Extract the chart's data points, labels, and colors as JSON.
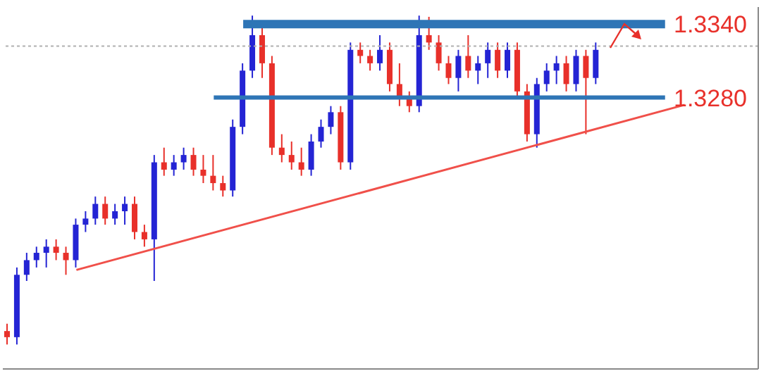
{
  "chart_data": {
    "type": "candlestick",
    "categories": [
      null,
      null,
      null,
      null,
      null,
      null,
      null,
      null,
      null,
      null,
      null,
      null,
      null,
      null,
      null,
      null,
      null,
      null,
      null,
      null,
      null,
      null,
      null,
      null,
      null,
      null,
      null,
      null,
      null,
      null,
      null,
      null,
      null,
      null,
      null,
      null,
      null,
      null,
      null,
      null,
      null,
      null,
      null,
      null,
      null,
      null,
      null,
      null,
      null,
      null,
      null,
      null,
      null,
      null,
      null,
      null,
      null,
      null,
      null,
      null,
      null,
      null,
      null,
      null,
      null,
      null,
      null,
      null,
      null,
      null,
      null,
      null,
      null,
      null,
      null,
      null,
      null
    ],
    "ohlc": [
      [
        1.3089,
        1.3095,
        1.3078,
        1.3084
      ],
      [
        1.3084,
        1.3141,
        1.3078,
        1.3135
      ],
      [
        1.3135,
        1.3153,
        1.313,
        1.3147
      ],
      [
        1.3147,
        1.3158,
        1.3141,
        1.3153
      ],
      [
        1.3153,
        1.3164,
        1.3141,
        1.3158
      ],
      [
        1.3158,
        1.3164,
        1.3147,
        1.3153
      ],
      [
        1.3153,
        1.3158,
        1.3135,
        1.3147
      ],
      [
        1.3147,
        1.3181,
        1.3141,
        1.3176
      ],
      [
        1.3176,
        1.3187,
        1.317,
        1.3181
      ],
      [
        1.3181,
        1.3199,
        1.3176,
        1.3193
      ],
      [
        1.3193,
        1.3199,
        1.3176,
        1.3181
      ],
      [
        1.3181,
        1.3193,
        1.3176,
        1.3187
      ],
      [
        1.3187,
        1.3199,
        1.3176,
        1.3193
      ],
      [
        1.3193,
        1.3199,
        1.3164,
        1.317
      ],
      [
        1.317,
        1.3176,
        1.3158,
        1.3164
      ],
      [
        1.3164,
        1.3233,
        1.313,
        1.3227
      ],
      [
        1.3227,
        1.3239,
        1.3216,
        1.3221
      ],
      [
        1.3221,
        1.3233,
        1.3216,
        1.3227
      ],
      [
        1.3227,
        1.3239,
        1.3221,
        1.3233
      ],
      [
        1.3233,
        1.3239,
        1.3216,
        1.3221
      ],
      [
        1.3221,
        1.3233,
        1.321,
        1.3216
      ],
      [
        1.3216,
        1.3233,
        1.3204,
        1.321
      ],
      [
        1.321,
        1.3216,
        1.3199,
        1.3204
      ],
      [
        1.3204,
        1.3262,
        1.3199,
        1.3256
      ],
      [
        1.3256,
        1.3308,
        1.325,
        1.3302
      ],
      [
        1.3302,
        1.3347,
        1.3296,
        1.3331
      ],
      [
        1.3331,
        1.3337,
        1.3296,
        1.3308
      ],
      [
        1.3308,
        1.3314,
        1.3233,
        1.3239
      ],
      [
        1.3239,
        1.325,
        1.3227,
        1.3233
      ],
      [
        1.3233,
        1.3244,
        1.3221,
        1.3227
      ],
      [
        1.3227,
        1.3239,
        1.3216,
        1.3221
      ],
      [
        1.3221,
        1.325,
        1.3216,
        1.3244
      ],
      [
        1.3244,
        1.3262,
        1.3239,
        1.3256
      ],
      [
        1.3256,
        1.3273,
        1.325,
        1.3268
      ],
      [
        1.3268,
        1.3273,
        1.3221,
        1.3227
      ],
      [
        1.3227,
        1.3325,
        1.3221,
        1.3319
      ],
      [
        1.3319,
        1.3325,
        1.3308,
        1.3314
      ],
      [
        1.3314,
        1.3319,
        1.3302,
        1.3308
      ],
      [
        1.3308,
        1.3331,
        1.3302,
        1.3319
      ],
      [
        1.3319,
        1.3325,
        1.3285,
        1.3291
      ],
      [
        1.3291,
        1.3308,
        1.3273,
        1.3279
      ],
      [
        1.3279,
        1.3285,
        1.3268,
        1.3273
      ],
      [
        1.3273,
        1.3347,
        1.3268,
        1.3331
      ],
      [
        1.3331,
        1.3346,
        1.3319,
        1.3325
      ],
      [
        1.3325,
        1.3331,
        1.3302,
        1.3308
      ],
      [
        1.3308,
        1.3314,
        1.3291,
        1.3296
      ],
      [
        1.3296,
        1.3319,
        1.3285,
        1.3314
      ],
      [
        1.3314,
        1.3331,
        1.3296,
        1.3302
      ],
      [
        1.3302,
        1.3314,
        1.3291,
        1.3308
      ],
      [
        1.3308,
        1.3325,
        1.3296,
        1.3319
      ],
      [
        1.3319,
        1.3325,
        1.3296,
        1.3302
      ],
      [
        1.3302,
        1.3325,
        1.3296,
        1.3319
      ],
      [
        1.3319,
        1.3325,
        1.3279,
        1.3285
      ],
      [
        1.3285,
        1.3291,
        1.3244,
        1.325
      ],
      [
        1.325,
        1.3296,
        1.3239,
        1.3291
      ],
      [
        1.3291,
        1.3308,
        1.3285,
        1.3302
      ],
      [
        1.3302,
        1.3314,
        1.3291,
        1.3308
      ],
      [
        1.3308,
        1.3314,
        1.3285,
        1.3291
      ],
      [
        1.3291,
        1.3319,
        1.3285,
        1.3314
      ],
      [
        1.3314,
        1.3319,
        1.325,
        1.3296
      ],
      [
        1.3296,
        1.3325,
        1.3291,
        1.3319
      ],
      null,
      null,
      null,
      null,
      null,
      null,
      null,
      null,
      null,
      null,
      null,
      null,
      null,
      null,
      null,
      null
    ],
    "series": [
      {
        "type": "line",
        "values": [
          null,
          null,
          null,
          null,
          null,
          null,
          null,
          1.3139,
          null,
          null,
          null,
          null,
          null,
          null,
          null,
          null,
          null,
          null,
          null,
          null,
          null,
          null,
          null,
          null,
          null,
          null,
          null,
          null,
          null,
          null,
          null,
          null,
          null,
          null,
          null,
          null,
          null,
          null,
          null,
          null,
          null,
          null,
          null,
          null,
          null,
          null,
          null,
          null,
          null,
          null,
          null,
          null,
          null,
          null,
          null,
          null,
          null,
          null,
          null,
          null,
          null,
          null,
          null,
          null,
          null,
          null,
          null,
          null,
          null,
          1.3274,
          null,
          null,
          null,
          null,
          null,
          null,
          null
        ],
        "color": "#f0504a"
      }
    ],
    "ylim": [
      1.3058,
      1.3354
    ],
    "yticks": [
      {
        "value": 1.328,
        "label": "1.3280"
      },
      {
        "value": 1.334,
        "label": "1.3340"
      }
    ],
    "tick_labels": "y",
    "ref_lines": [
      {
        "axis": "y",
        "value": 1.334,
        "color": "#2e75b6",
        "line_style": "solid"
      },
      {
        "axis": "y",
        "value": 1.328,
        "color": "#2e75b6",
        "line_style": "solid"
      },
      {
        "axis": "y",
        "value": 1.3322,
        "color": "#b0b0b0",
        "line_style": "dotted"
      }
    ]
  }
}
